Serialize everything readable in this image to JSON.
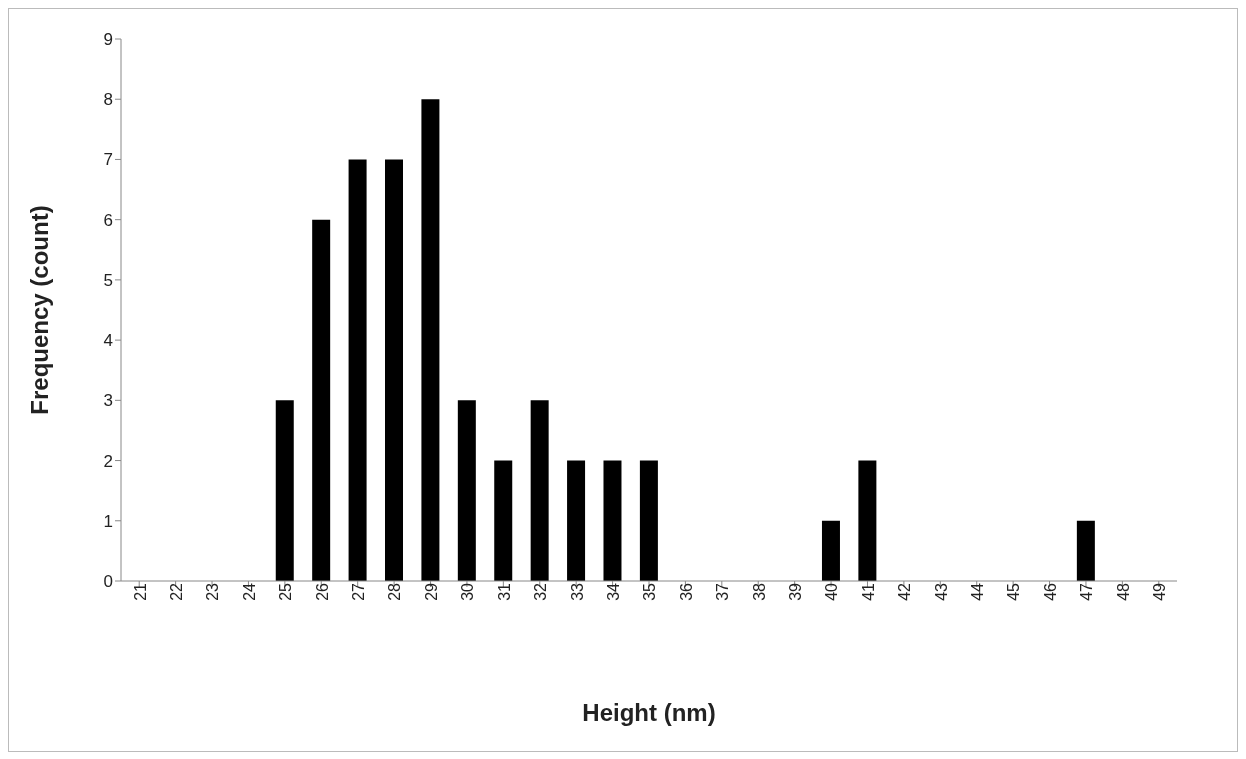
{
  "chart_data": {
    "type": "bar",
    "xlabel": "Height (nm)",
    "ylabel": "Frequency (count)",
    "categories": [
      "21",
      "22",
      "23",
      "24",
      "25",
      "26",
      "27",
      "28",
      "29",
      "30",
      "31",
      "32",
      "33",
      "34",
      "35",
      "36",
      "37",
      "38",
      "39",
      "40",
      "41",
      "42",
      "43",
      "44",
      "45",
      "46",
      "47",
      "48",
      "49"
    ],
    "values": [
      0,
      0,
      0,
      0,
      3,
      6,
      7,
      7,
      8,
      3,
      2,
      3,
      2,
      2,
      2,
      0,
      0,
      0,
      0,
      1,
      2,
      0,
      0,
      0,
      0,
      0,
      1,
      0,
      0
    ],
    "color": "#000000",
    "ylim": [
      0,
      9
    ],
    "yticks": [
      0,
      1,
      2,
      3,
      4,
      5,
      6,
      7,
      8,
      9
    ],
    "grid": false,
    "legend": false
  }
}
